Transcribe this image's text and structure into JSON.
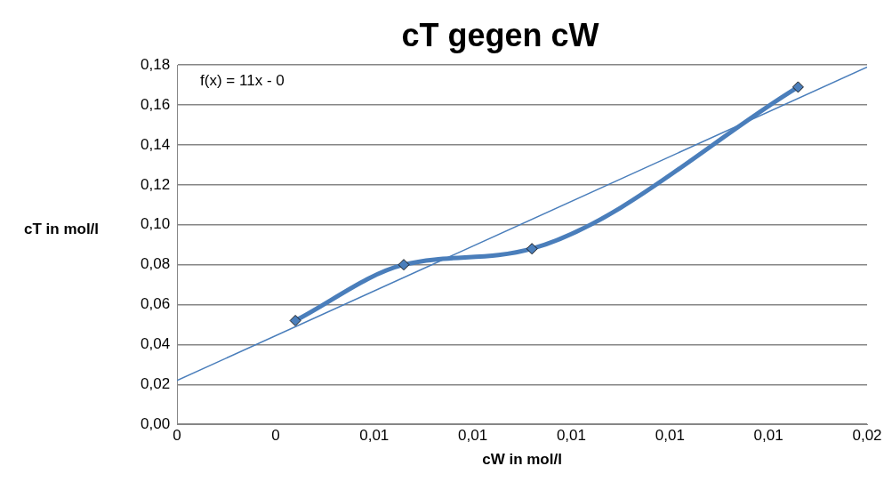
{
  "chart_data": {
    "type": "line",
    "title": "cT gegen cW",
    "xlabel": "cW in mol/l",
    "ylabel": "cT in mol/l",
    "xlim": [
      0.002,
      0.016
    ],
    "xticks": [
      {
        "value": 0.002,
        "label": "0"
      },
      {
        "value": 0.004,
        "label": "0"
      },
      {
        "value": 0.006,
        "label": "0,01"
      },
      {
        "value": 0.008,
        "label": "0,01"
      },
      {
        "value": 0.01,
        "label": "0,01"
      },
      {
        "value": 0.012,
        "label": "0,01"
      },
      {
        "value": 0.014,
        "label": "0,01"
      },
      {
        "value": 0.016,
        "label": "0,02"
      }
    ],
    "ylim": [
      0,
      0.18
    ],
    "yticks": [
      {
        "value": 0,
        "label": "0,00"
      },
      {
        "value": 0.02,
        "label": "0,02"
      },
      {
        "value": 0.04,
        "label": "0,04"
      },
      {
        "value": 0.06,
        "label": "0,06"
      },
      {
        "value": 0.08,
        "label": "0,08"
      },
      {
        "value": 0.1,
        "label": "0,10"
      },
      {
        "value": 0.12,
        "label": "0,12"
      },
      {
        "value": 0.14,
        "label": "0,14"
      },
      {
        "value": 0.16,
        "label": "0,16"
      },
      {
        "value": 0.18,
        "label": "0,18"
      }
    ],
    "series": [
      {
        "type": "line",
        "color": "#4a7ebb",
        "marker": "diamond",
        "x": [
          0.0044,
          0.0066,
          0.0092,
          0.0146
        ],
        "values": [
          0.052,
          0.08,
          0.088,
          0.169
        ]
      },
      {
        "type": "line",
        "color": "#4a7ebb",
        "marker": "none",
        "x": [
          0.002,
          0.016
        ],
        "values": [
          0.022,
          0.179
        ]
      }
    ],
    "annotations": [
      "f(x) = 11x - 0"
    ],
    "grid": "y",
    "legend": false
  }
}
